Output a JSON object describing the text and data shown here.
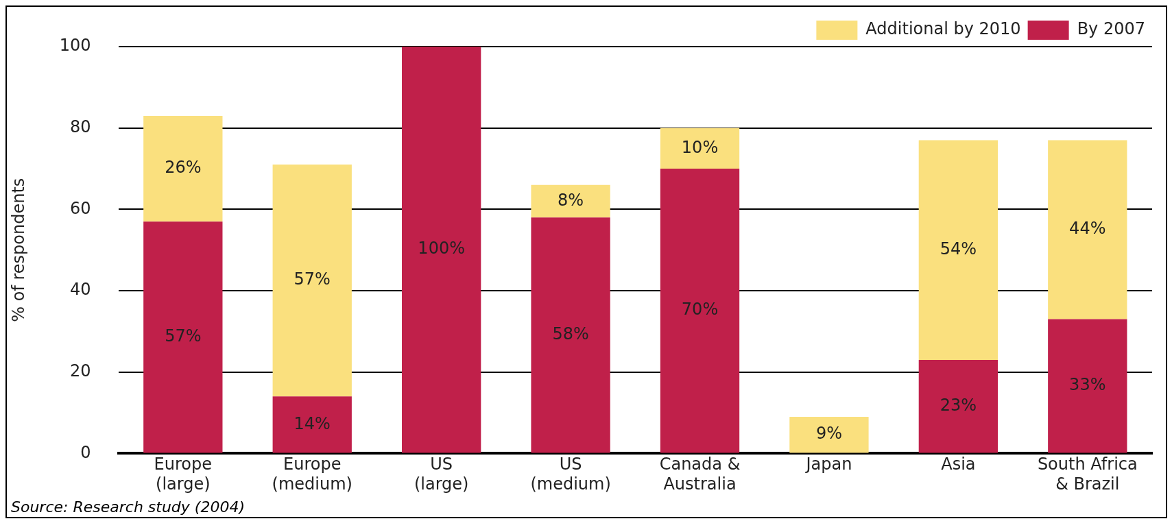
{
  "chart_data": {
    "type": "bar",
    "stacked": true,
    "ylabel": "% of respondents",
    "categories": [
      "Europe\n(large)",
      "Europe\n(medium)",
      "US\n(large)",
      "US\n(medium)",
      "Canada &\nAustralia",
      "Japan",
      "Asia",
      "South Africa\n& Brazil"
    ],
    "series": [
      {
        "name": "By 2007",
        "color": "#c0204a",
        "values": [
          57,
          14,
          100,
          58,
          70,
          null,
          23,
          33
        ],
        "value_labels": [
          "57%",
          "14%",
          "100%",
          "58%",
          "70%",
          null,
          "23%",
          "33%"
        ]
      },
      {
        "name": "Additional by 2010",
        "color": "#fae07e",
        "values": [
          26,
          57,
          null,
          8,
          10,
          9,
          54,
          44
        ],
        "value_labels": [
          "26%",
          "57%",
          null,
          "8%",
          "10%",
          "9%",
          "54%",
          "44%"
        ]
      }
    ],
    "ylim": [
      0,
      100
    ],
    "yticks": [
      0,
      20,
      40,
      60,
      80,
      100
    ],
    "grid": "y",
    "legend": "top right",
    "annotations": [
      "Source: Research study (2004)"
    ]
  }
}
